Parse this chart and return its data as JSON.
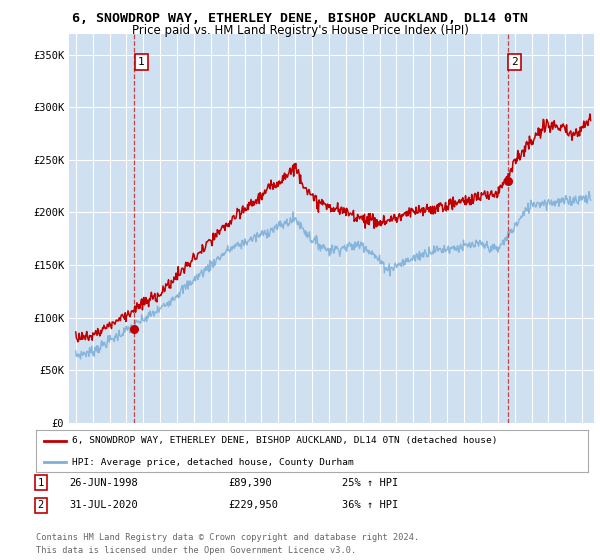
{
  "title_line1": "6, SNOWDROP WAY, ETHERLEY DENE, BISHOP AUCKLAND, DL14 0TN",
  "title_line2": "Price paid vs. HM Land Registry's House Price Index (HPI)",
  "legend_label1": "6, SNOWDROP WAY, ETHERLEY DENE, BISHOP AUCKLAND, DL14 0TN (detached house)",
  "legend_label2": "HPI: Average price, detached house, County Durham",
  "footnote_line1": "Contains HM Land Registry data © Crown copyright and database right 2024.",
  "footnote_line2": "This data is licensed under the Open Government Licence v3.0.",
  "sale1_date": "26-JUN-1998",
  "sale1_price_str": "£89,390",
  "sale1_hpi_str": "25% ↑ HPI",
  "sale2_date": "31-JUL-2020",
  "sale2_price_str": "£229,950",
  "sale2_hpi_str": "36% ↑ HPI",
  "bg_color": "#cfe0f0",
  "red_color": "#c00000",
  "blue_color": "#80b0d8",
  "ylim_min": 0,
  "ylim_max": 370000,
  "yticks": [
    0,
    50000,
    100000,
    150000,
    200000,
    250000,
    300000,
    350000
  ],
  "ytick_labels": [
    "£0",
    "£50K",
    "£100K",
    "£150K",
    "£200K",
    "£250K",
    "£300K",
    "£350K"
  ],
  "xlim_min": 1994.6,
  "xlim_max": 2025.7,
  "sale1_x": 1998.48,
  "sale1_y": 89390,
  "sale2_x": 2020.58,
  "sale2_y": 229950
}
